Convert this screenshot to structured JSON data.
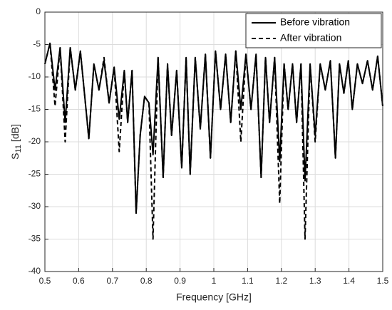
{
  "chart_data": {
    "type": "line",
    "xlabel": "Frequency [GHz]",
    "ylabel": {
      "main": "S",
      "sub": "11",
      "unit": "[dB]"
    },
    "x": [
      0.5,
      0.515,
      0.53,
      0.545,
      0.56,
      0.575,
      0.59,
      0.605,
      0.63,
      0.645,
      0.66,
      0.675,
      0.69,
      0.705,
      0.72,
      0.735,
      0.745,
      0.758,
      0.77,
      0.782,
      0.795,
      0.808,
      0.82,
      0.835,
      0.85,
      0.863,
      0.875,
      0.89,
      0.905,
      0.918,
      0.93,
      0.945,
      0.96,
      0.975,
      0.99,
      1.005,
      1.02,
      1.035,
      1.05,
      1.065,
      1.08,
      1.095,
      1.11,
      1.125,
      1.14,
      1.153,
      1.165,
      1.18,
      1.195,
      1.208,
      1.22,
      1.233,
      1.245,
      1.258,
      1.27,
      1.285,
      1.3,
      1.315,
      1.33,
      1.345,
      1.36,
      1.372,
      1.385,
      1.398,
      1.41,
      1.425,
      1.44,
      1.455,
      1.47,
      1.485,
      1.5
    ],
    "series": [
      {
        "name": "Before vibration",
        "color": "#000000",
        "dash": false,
        "values": [
          -8,
          -4.8,
          -12,
          -5.5,
          -17,
          -5.5,
          -12,
          -6,
          -19.5,
          -8,
          -12,
          -7.5,
          -14,
          -8.5,
          -16.5,
          -9,
          -17,
          -9,
          -31,
          -19,
          -13,
          -14,
          -22,
          -7,
          -25.5,
          -8,
          -19,
          -9,
          -24,
          -7,
          -25,
          -7,
          -18,
          -6.5,
          -22.5,
          -6,
          -15,
          -6.5,
          -17,
          -6,
          -15,
          -6.5,
          -15,
          -6.5,
          -25.5,
          -7,
          -17,
          -7,
          -23,
          -8,
          -15,
          -8,
          -17,
          -8,
          -26,
          -8,
          -19,
          -8,
          -12,
          -7.5,
          -22.5,
          -8,
          -12.5,
          -7.5,
          -15,
          -8,
          -11,
          -7.5,
          -12,
          -6.8,
          -14.5
        ]
      },
      {
        "name": "After vibration",
        "color": "#000000",
        "dash": true,
        "values": [
          -8,
          -4.8,
          -14.5,
          -5.5,
          -20,
          -5.5,
          -12,
          -6,
          -19.5,
          -8,
          -12,
          -7,
          -14,
          -8.5,
          -21.5,
          -9,
          -17,
          -9,
          -31,
          -19,
          -13,
          -14,
          -35,
          -7,
          -25.5,
          -8,
          -19,
          -9,
          -24,
          -7,
          -25,
          -7,
          -18,
          -6.5,
          -22.5,
          -6,
          -15,
          -6.5,
          -17,
          -6,
          -20,
          -6.5,
          -15,
          -6.5,
          -25.5,
          -7,
          -17,
          -7,
          -29.5,
          -8,
          -15,
          -8,
          -17,
          -8,
          -35,
          -8,
          -20,
          -8,
          -12,
          -7.5,
          -22.5,
          -8,
          -12.5,
          -7.5,
          -15,
          -8,
          -11,
          -7.5,
          -12,
          -6.8,
          -14.5
        ]
      }
    ],
    "xlim": [
      0.5,
      1.5
    ],
    "xticks": [
      0.5,
      0.6,
      0.7,
      0.8,
      0.9,
      1,
      1.1,
      1.2,
      1.3,
      1.4,
      1.5
    ],
    "ylim": [
      -40,
      0
    ],
    "yticks": [
      -40,
      -35,
      -30,
      -25,
      -20,
      -15,
      -10,
      -5,
      0
    ],
    "grid": true,
    "legend": "top-right"
  }
}
